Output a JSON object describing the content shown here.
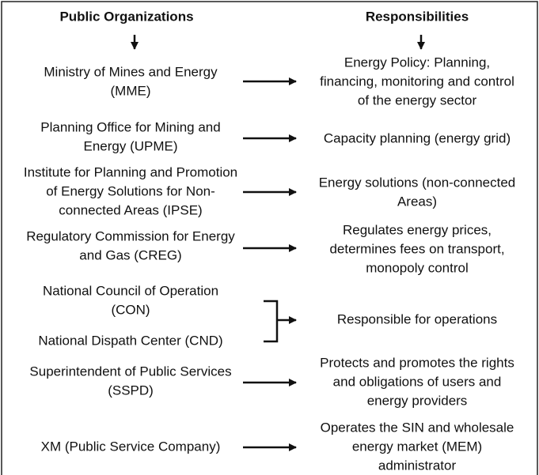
{
  "headers": {
    "left": "Public Organizations",
    "right": "Responsibilities"
  },
  "rows": [
    {
      "org": [
        "Ministry of Mines and Energy",
        "(MME)"
      ],
      "resp": [
        "Energy Policy: Planning,",
        "financing, monitoring and control",
        "of the energy sector"
      ]
    },
    {
      "org": [
        "Planning Office for Mining and",
        "Energy (UPME)"
      ],
      "resp": [
        "Capacity planning (energy grid)"
      ]
    },
    {
      "org": [
        "Institute for Planning and Promotion",
        "of Energy Solutions for Non-",
        "connected Areas (IPSE)"
      ],
      "resp": [
        "Energy solutions (non-connected",
        "Areas)"
      ]
    },
    {
      "org": [
        "Regulatory Commission for Energy",
        "and Gas (CREG)"
      ],
      "resp": [
        "Regulates energy prices,",
        "determines fees on transport,",
        "monopoly control"
      ]
    },
    {
      "org": [
        "National Council of Operation",
        "(CON)",
        "National Dispath Center (CND)"
      ],
      "resp": [
        "Responsible for operations"
      ]
    },
    {
      "org": [
        "Superintendent of Public Services",
        "(SSPD)"
      ],
      "resp": [
        "Protects and promotes the rights",
        "and obligations of users and",
        "energy providers"
      ]
    },
    {
      "org": [
        "XM (Public Service Company)"
      ],
      "resp": [
        "Operates the SIN and wholesale",
        "energy market (MEM)",
        "administrator"
      ]
    }
  ]
}
